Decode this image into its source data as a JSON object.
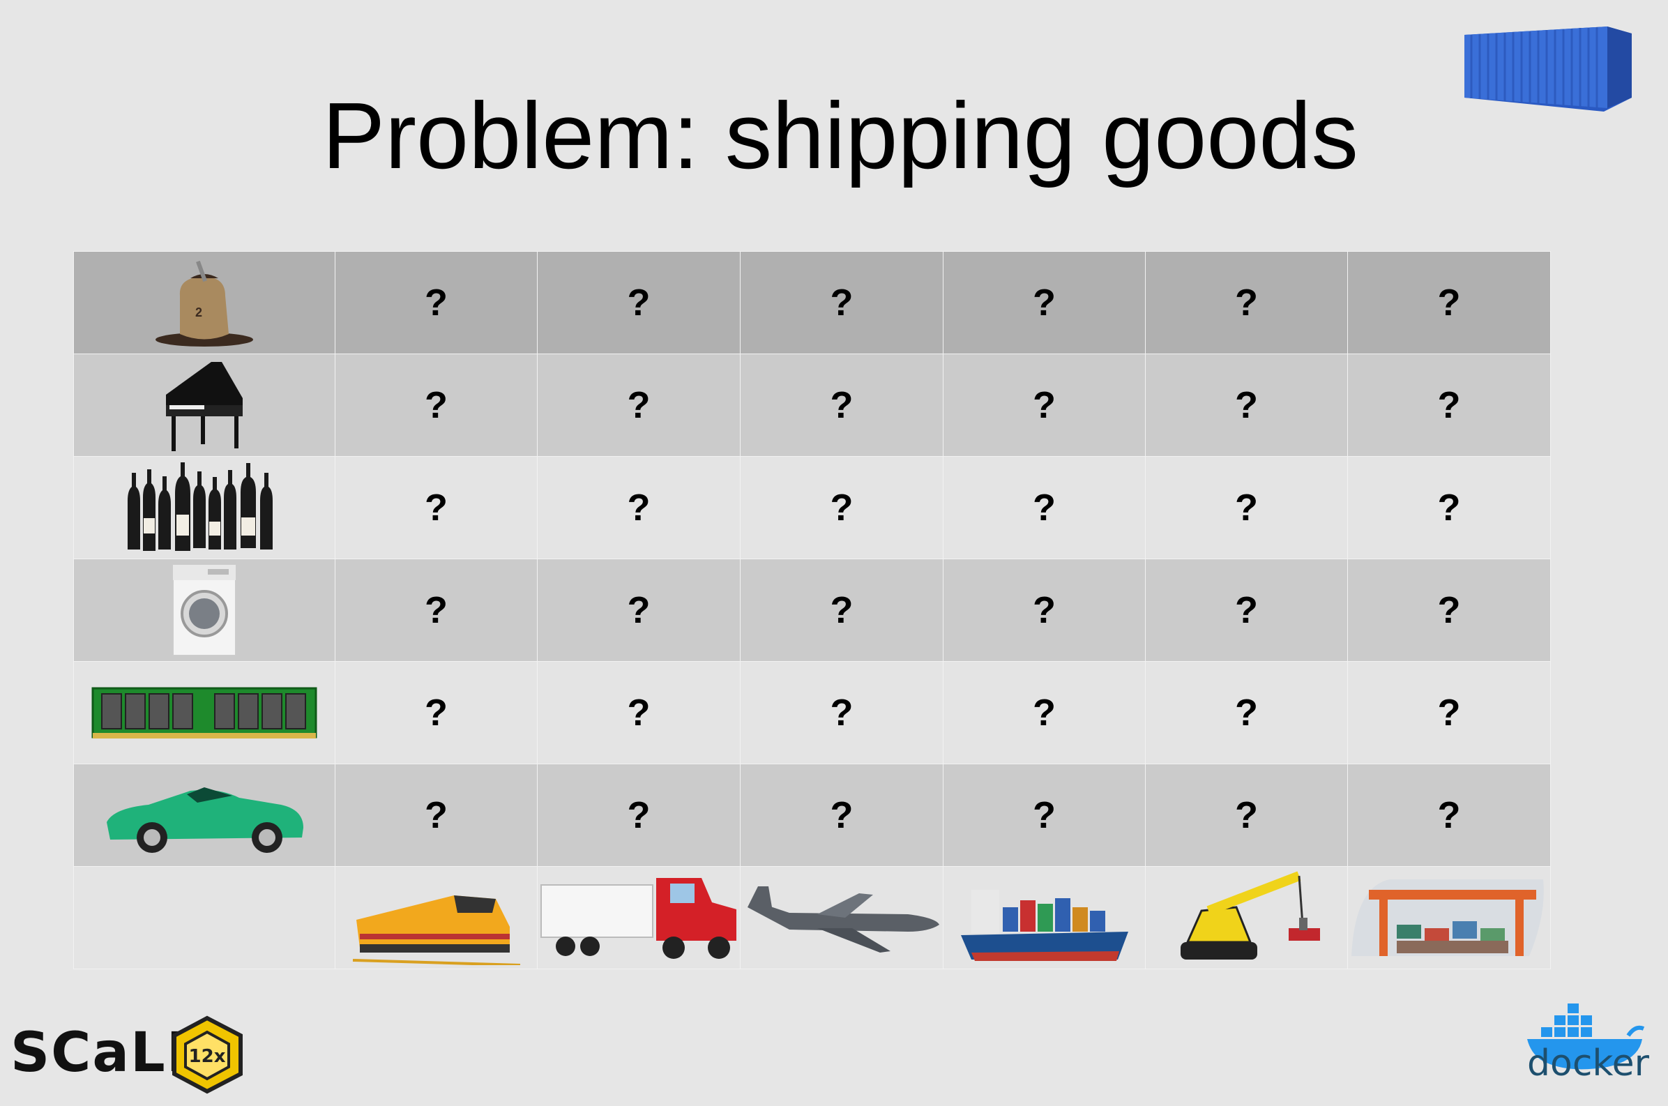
{
  "title": "Problem: shipping goods",
  "goods": [
    {
      "icon": "coffee-beans-sack-icon"
    },
    {
      "icon": "grand-piano-icon"
    },
    {
      "icon": "wine-bottles-icon"
    },
    {
      "icon": "washing-machine-icon"
    },
    {
      "icon": "ram-module-icon"
    },
    {
      "icon": "sports-car-icon"
    }
  ],
  "transports": [
    {
      "icon": "locomotive-icon"
    },
    {
      "icon": "semi-truck-icon"
    },
    {
      "icon": "cargo-plane-icon"
    },
    {
      "icon": "container-ship-icon"
    },
    {
      "icon": "crane-vehicle-icon"
    },
    {
      "icon": "port-gantry-crane-icon"
    }
  ],
  "cell_mark": "?",
  "logos": {
    "scale": {
      "text": "SCaLE",
      "badge": "12x"
    },
    "docker": {
      "text": "docker"
    }
  },
  "colors": {
    "container_blue": "#3a6fd8",
    "car_green": "#1fb27a",
    "truck_red": "#d42027",
    "train_yellow": "#f2a81d",
    "ram_green": "#1e8a2c",
    "docker_blue": "#2496ed"
  }
}
